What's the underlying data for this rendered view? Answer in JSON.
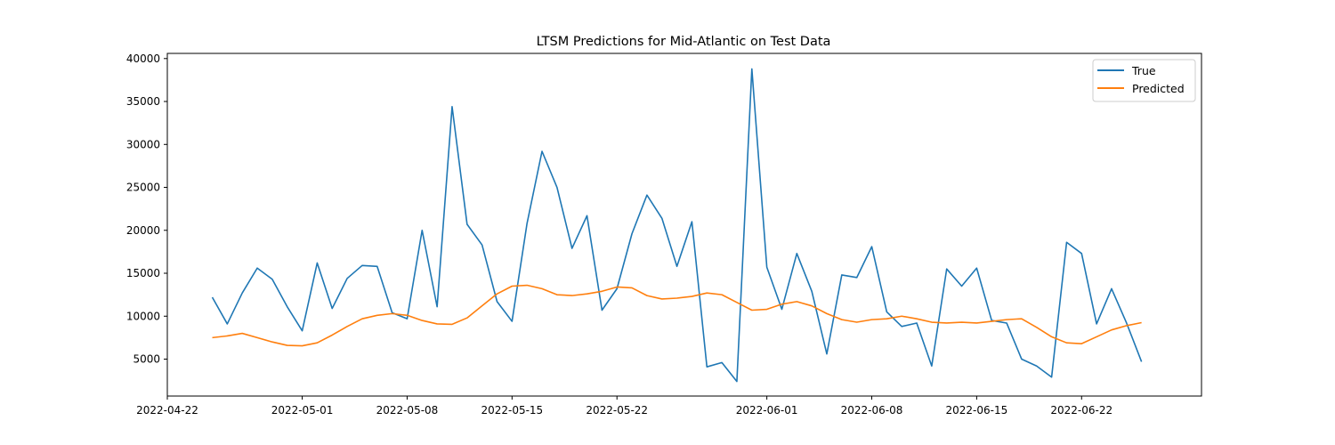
{
  "chart_data": {
    "type": "line",
    "title": "LTSM Predictions for Mid-Atlantic on Test Data",
    "xlabel": "",
    "ylabel": "",
    "x_start": "2022-04-25",
    "x": [
      "2022-04-25",
      "2022-04-26",
      "2022-04-27",
      "2022-04-28",
      "2022-04-29",
      "2022-04-30",
      "2022-05-01",
      "2022-05-02",
      "2022-05-03",
      "2022-05-04",
      "2022-05-05",
      "2022-05-06",
      "2022-05-07",
      "2022-05-08",
      "2022-05-09",
      "2022-05-10",
      "2022-05-11",
      "2022-05-12",
      "2022-05-13",
      "2022-05-14",
      "2022-05-15",
      "2022-05-16",
      "2022-05-17",
      "2022-05-18",
      "2022-05-19",
      "2022-05-20",
      "2022-05-21",
      "2022-05-22",
      "2022-05-23",
      "2022-05-24",
      "2022-05-25",
      "2022-05-26",
      "2022-05-27",
      "2022-05-28",
      "2022-05-29",
      "2022-05-30",
      "2022-05-31",
      "2022-06-01",
      "2022-06-02",
      "2022-06-03",
      "2022-06-04",
      "2022-06-05",
      "2022-06-06",
      "2022-06-07",
      "2022-06-08",
      "2022-06-09",
      "2022-06-10",
      "2022-06-11",
      "2022-06-12",
      "2022-06-13",
      "2022-06-14",
      "2022-06-15",
      "2022-06-16",
      "2022-06-17",
      "2022-06-18",
      "2022-06-19",
      "2022-06-20",
      "2022-06-21",
      "2022-06-22",
      "2022-06-23",
      "2022-06-24",
      "2022-06-25",
      "2022-06-26"
    ],
    "series": [
      {
        "name": "True",
        "color": "#1f77b4",
        "values": [
          12200,
          9100,
          12700,
          15600,
          14300,
          11100,
          8300,
          16200,
          10900,
          14400,
          15900,
          15800,
          10400,
          9700,
          20000,
          11100,
          34400,
          20700,
          18300,
          11700,
          9400,
          20800,
          29200,
          25000,
          17900,
          21700,
          10700,
          13200,
          19600,
          24100,
          21400,
          15800,
          21000,
          4100,
          4600,
          2400,
          38800,
          15700,
          10800,
          17300,
          12900,
          5600,
          14800,
          14500,
          18100,
          10500,
          8800,
          9200,
          4200,
          15500,
          13500,
          15600,
          9500,
          9200,
          5000,
          4200,
          2900,
          18600,
          17300,
          9100,
          13200,
          9200,
          4700
        ]
      },
      {
        "name": "Predicted",
        "color": "#ff7f0e",
        "values": [
          7500,
          7700,
          8000,
          7500,
          7000,
          6600,
          6550,
          6900,
          7800,
          8800,
          9700,
          10100,
          10300,
          10100,
          9500,
          9100,
          9050,
          9800,
          11200,
          12600,
          13500,
          13600,
          13200,
          12500,
          12400,
          12600,
          12900,
          13400,
          13300,
          12400,
          12000,
          12100,
          12300,
          12700,
          12500,
          11600,
          10700,
          10800,
          11400,
          11700,
          11200,
          10300,
          9600,
          9300,
          9600,
          9700,
          10000,
          9700,
          9300,
          9200,
          9300,
          9200,
          9400,
          9600,
          9700,
          8700,
          7600,
          6900,
          6800,
          7600,
          8400,
          8900,
          9250
        ]
      }
    ],
    "x_ticks": [
      "2022-04-22",
      "2022-05-01",
      "2022-05-08",
      "2022-05-15",
      "2022-05-22",
      "2022-06-01",
      "2022-06-08",
      "2022-06-15",
      "2022-06-22"
    ],
    "y_ticks": [
      5000,
      10000,
      15000,
      20000,
      25000,
      30000,
      35000,
      40000
    ],
    "xlim": [
      "2022-04-22",
      "2022-06-30"
    ],
    "ylim": [
      700,
      40600
    ],
    "grid": false,
    "legend_position": "top-right"
  }
}
